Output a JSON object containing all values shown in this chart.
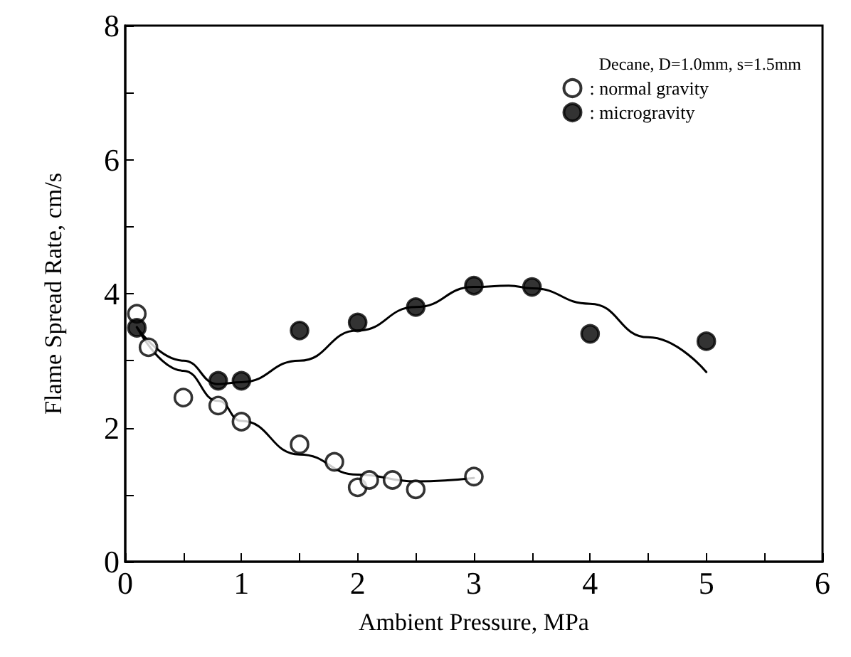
{
  "chart_data": {
    "type": "scatter",
    "xlabel": "Ambient Pressure, MPa",
    "ylabel": "Flame Spread Rate, cm/s",
    "legend_title": "Decane, D=1.0mm, s=1.5mm",
    "xlim": [
      0,
      6
    ],
    "xticks": [
      0,
      {
        "value": 0.5,
        "label": null
      },
      1,
      {
        "value": 1.5,
        "label": null
      },
      2,
      {
        "value": 2.5,
        "label": null
      },
      3,
      {
        "value": 3.5,
        "label": null
      },
      4,
      {
        "value": 4.5,
        "label": null
      },
      5,
      {
        "value": 5.5,
        "label": null
      },
      6
    ],
    "ylim": [
      0,
      8
    ],
    "yticks": [
      0,
      {
        "value": 1,
        "label": null
      },
      2,
      {
        "value": 3,
        "label": null
      },
      4,
      {
        "value": 5,
        "label": null
      },
      6,
      {
        "value": 7,
        "label": null
      },
      8
    ],
    "grid": false,
    "legend": "top right",
    "marker": "circle",
    "series": [
      {
        "name": ": normal gravity",
        "color": "#ffffff",
        "x": [
          0.1,
          0.2,
          0.5,
          0.8,
          1.0,
          1.5,
          1.8,
          2.0,
          2.1,
          2.3,
          2.5,
          3.0
        ],
        "values": [
          3.7,
          3.2,
          2.45,
          2.33,
          2.09,
          1.75,
          1.49,
          1.11,
          1.22,
          1.22,
          1.08,
          1.27
        ]
      },
      {
        "name": ": microgravity",
        "color": "#000000",
        "x": [
          0.1,
          0.8,
          1.0,
          1.5,
          2.0,
          2.5,
          3.0,
          3.5,
          4.0,
          5.0
        ],
        "values": [
          3.49,
          2.7,
          2.7,
          3.45,
          3.57,
          3.8,
          4.12,
          4.1,
          3.4,
          3.29
        ]
      },
      {
        "type": "line",
        "color": "#000000",
        "marker": "none",
        "line_style": "solid",
        "x": [
          0.1,
          0.5,
          0.8,
          1.0,
          1.5,
          2.0,
          2.5,
          3.0
        ],
        "values": [
          3.5,
          2.85,
          2.4,
          2.1,
          1.6,
          1.3,
          1.2,
          1.25
        ]
      },
      {
        "type": "line",
        "color": "#000000",
        "marker": "none",
        "line_style": "solid",
        "x": [
          0.1,
          0.5,
          0.8,
          1.0,
          1.5,
          2.0,
          2.5,
          3.0,
          3.3,
          3.5,
          4.0,
          4.5,
          5.0
        ],
        "values": [
          3.5,
          3.0,
          2.65,
          2.68,
          3.0,
          3.45,
          3.8,
          4.1,
          4.12,
          4.08,
          3.85,
          3.35,
          2.83
        ]
      }
    ]
  }
}
